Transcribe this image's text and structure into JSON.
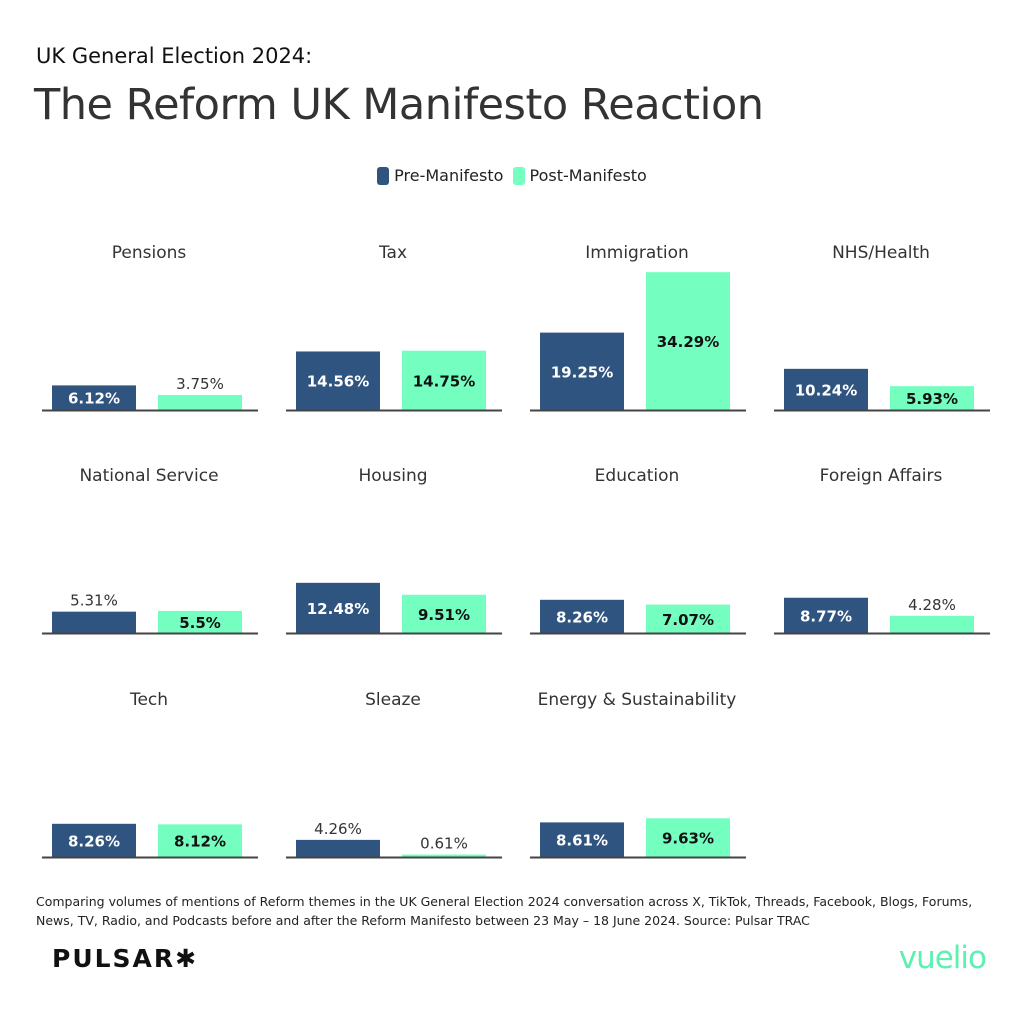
{
  "header": {
    "supertitle": "UK General Election 2024:",
    "title": "The Reform UK Manifesto Reaction"
  },
  "colors": {
    "pre": "#2f5480",
    "post": "#74ffc1",
    "baseline": "#444444"
  },
  "chart_data": {
    "type": "bar",
    "layout": "small multiples, 3 rows x 4 columns",
    "legend_position": "top-center",
    "grid": false,
    "unit": "%",
    "categories": [
      "Pensions",
      "Tax",
      "Immigration",
      "NHS/Health",
      "National Service",
      "Housing",
      "Education",
      "Foreign Affairs",
      "Tech",
      "Sleaze",
      "Energy & Sustainability"
    ],
    "series": [
      {
        "name": "Pre-Manifesto",
        "values": [
          6.12,
          14.56,
          19.25,
          10.24,
          5.31,
          12.48,
          8.26,
          8.77,
          8.26,
          4.26,
          8.61
        ],
        "labels": [
          "6.12%",
          "14.56%",
          "19.25%",
          "10.24%",
          "5.31%",
          "12.48%",
          "8.26%",
          "8.77%",
          "8.26%",
          "4.26%",
          "8.61%"
        ]
      },
      {
        "name": "Post-Manifesto",
        "values": [
          3.75,
          14.75,
          34.29,
          5.93,
          5.5,
          9.51,
          7.07,
          4.28,
          8.12,
          0.61,
          9.63
        ],
        "labels": [
          "3.75%",
          "14.75%",
          "34.29%",
          "5.93%",
          "5.5%",
          "9.51%",
          "7.07%",
          "4.28%",
          "8.12%",
          "0.61%",
          "9.63%"
        ]
      }
    ]
  },
  "footer": {
    "note": "Comparing volumes of mentions of Reform themes in the UK General Election 2024 conversation across X, TikTok, Threads, Facebook, Blogs, Forums, News, TV, Radio, and Podcasts before and after the Reform Manifesto between 23 May – 18 June 2024. Source: Pulsar TRAC",
    "logo_left": "PULSAR✱",
    "logo_right": "vuelio"
  }
}
